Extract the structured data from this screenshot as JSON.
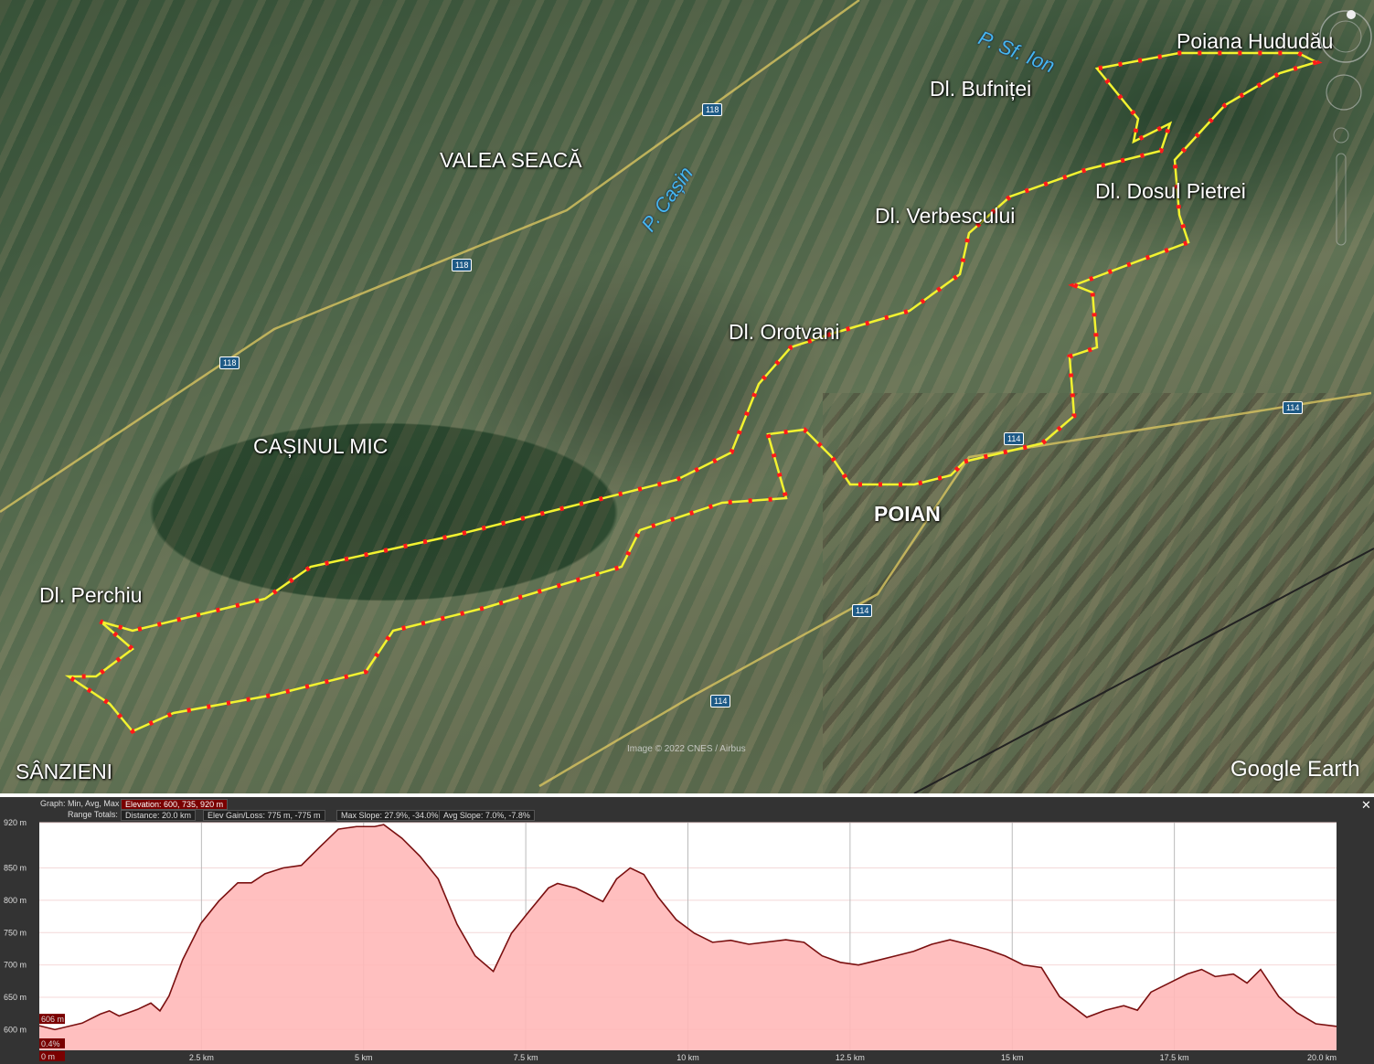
{
  "map": {
    "place_labels": [
      {
        "text": "Poiana Hududău",
        "bold": false
      },
      {
        "text": "Dl. Bufniței",
        "bold": false
      },
      {
        "text": "VALEA SEACĂ",
        "bold": false
      },
      {
        "text": "Dl. Dosul Pietrei",
        "bold": false
      },
      {
        "text": "Dl. Verbescului",
        "bold": false
      },
      {
        "text": "Dl. Orotvani",
        "bold": false
      },
      {
        "text": "CAȘINUL MIC",
        "bold": false
      },
      {
        "text": "POIAN",
        "bold": true
      },
      {
        "text": "Dl. Perchiu",
        "bold": false
      },
      {
        "text": "SÂNZIENI",
        "bold": false
      }
    ],
    "rivers": [
      "P. Sf. Ion",
      "P. Cașin"
    ],
    "road_numbers": [
      "118",
      "118",
      "118",
      "114",
      "114",
      "114",
      "114"
    ],
    "credit": "Image © 2022 CNES / Airbus",
    "logo": "Google Earth",
    "route_colors": {
      "line": "#f2f230",
      "points": "#ff1a1a"
    }
  },
  "profile": {
    "graph_label": "Graph: Min, Avg, Max",
    "elevation": "Elevation: 600, 735, 920 m",
    "range_label": "Range Totals:",
    "distance": "Distance: 20.0 km",
    "gain_loss": "Elev Gain/Loss: 775 m, -775 m",
    "max_slope": "Max Slope: 27.9%, -34.0%",
    "avg_slope": "Avg Slope: 7.0%, -7.8%",
    "cursor_elev": "606 m",
    "cursor_slope": "0.4%",
    "cursor_dist": "0 m",
    "close_icon": "close-icon"
  },
  "chart_data": {
    "type": "area",
    "xlabel": "",
    "ylabel": "",
    "xlim": [
      0,
      20
    ],
    "ylim": [
      568,
      920
    ],
    "x_ticks": [
      {
        "v": 2.5,
        "label": "2.5 km"
      },
      {
        "v": 5,
        "label": "5 km"
      },
      {
        "v": 7.5,
        "label": "7.5 km"
      },
      {
        "v": 10,
        "label": "10 km"
      },
      {
        "v": 12.5,
        "label": "12.5 km"
      },
      {
        "v": 15,
        "label": "15 km"
      },
      {
        "v": 17.5,
        "label": "17.5 km"
      },
      {
        "v": 20,
        "label": "20.0 km"
      }
    ],
    "y_ticks": [
      {
        "v": 600,
        "label": "600 m"
      },
      {
        "v": 650,
        "label": "650 m"
      },
      {
        "v": 700,
        "label": "700 m"
      },
      {
        "v": 750,
        "label": "750 m"
      },
      {
        "v": 800,
        "label": "800 m"
      },
      {
        "v": 850,
        "label": "850 m"
      },
      {
        "v": 920,
        "label": "920 m"
      }
    ],
    "fill_color": "#ffb8b8",
    "line_color": "#7a1010",
    "x": [
      0,
      0.24,
      0.66,
      0.94,
      1.08,
      1.23,
      1.51,
      1.72,
      1.86,
      2.0,
      2.21,
      2.49,
      2.77,
      3.06,
      3.27,
      3.48,
      3.76,
      4.04,
      4.32,
      4.61,
      4.89,
      5.17,
      5.31,
      5.59,
      5.87,
      6.15,
      6.44,
      6.72,
      7.0,
      7.28,
      7.56,
      7.85,
      7.99,
      8.27,
      8.69,
      8.9,
      9.11,
      9.32,
      9.54,
      9.82,
      10.1,
      10.38,
      10.66,
      10.94,
      11.51,
      11.79,
      12.07,
      12.35,
      12.63,
      12.92,
      13.2,
      13.48,
      13.76,
      14.04,
      14.32,
      14.61,
      14.89,
      15.17,
      15.45,
      15.73,
      16.15,
      16.44,
      16.72,
      16.93,
      17.14,
      17.42,
      17.7,
      17.92,
      18.13,
      18.41,
      18.62,
      18.83,
      19.11,
      19.39,
      19.68,
      20.0
    ],
    "y": [
      606,
      600,
      610,
      624,
      629,
      621,
      631,
      641,
      629,
      652,
      708,
      764,
      799,
      827,
      827,
      841,
      850,
      854,
      882,
      910,
      914,
      914,
      917,
      896,
      868,
      833,
      763,
      714,
      690,
      749,
      784,
      819,
      826,
      819,
      798,
      833,
      850,
      840,
      805,
      770,
      749,
      735,
      738,
      732,
      739,
      735,
      714,
      704,
      700,
      707,
      714,
      721,
      732,
      739,
      732,
      724,
      714,
      700,
      696,
      651,
      619,
      630,
      637,
      630,
      658,
      672,
      686,
      693,
      682,
      686,
      672,
      693,
      651,
      626,
      609,
      605
    ]
  }
}
